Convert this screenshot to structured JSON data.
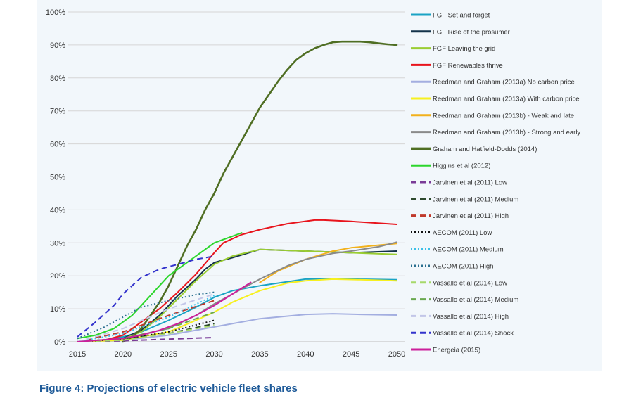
{
  "caption": "Figure 4: Projections of electric vehicle fleet shares",
  "chart_data": {
    "type": "line",
    "title": "",
    "xlabel": "",
    "ylabel": "",
    "xlim": [
      2015,
      2050
    ],
    "ylim": [
      0,
      100
    ],
    "x_ticks": [
      2015,
      2020,
      2025,
      2030,
      2035,
      2040,
      2045,
      2050
    ],
    "y_ticks": [
      0,
      10,
      20,
      30,
      40,
      50,
      60,
      70,
      80,
      90,
      100
    ],
    "y_tick_format": "percent",
    "grid": "horizontal",
    "legend_position": "right",
    "series": [
      {
        "name": "FGF Set and forget",
        "color": "#1aa3c4",
        "dash": "solid",
        "width": 2,
        "x": [
          2015,
          2018,
          2020,
          2022,
          2025,
          2028,
          2030,
          2032,
          2035,
          2040,
          2045,
          2050
        ],
        "y": [
          0,
          0.5,
          1.5,
          3,
          6.5,
          10.5,
          13.5,
          15.5,
          17,
          19,
          19,
          18.8
        ]
      },
      {
        "name": "FGF Rise of the prosumer",
        "color": "#13324a",
        "dash": "solid",
        "width": 2,
        "x": [
          2015,
          2020,
          2022,
          2024,
          2026,
          2028,
          2029,
          2030,
          2032,
          2035,
          2040,
          2045,
          2050
        ],
        "y": [
          0,
          1,
          3.5,
          8,
          14,
          19,
          22,
          24,
          25.5,
          28,
          27.5,
          27,
          27.5
        ]
      },
      {
        "name": "FGF Leaving the grid",
        "color": "#9acd32",
        "dash": "solid",
        "width": 2,
        "x": [
          2015,
          2020,
          2022,
          2024,
          2026,
          2028,
          2030,
          2032,
          2035,
          2040,
          2045,
          2050
        ],
        "y": [
          0,
          0.8,
          3,
          7.5,
          13,
          18.5,
          23.5,
          26,
          28,
          27.5,
          27,
          26.5
        ]
      },
      {
        "name": "FGF Renewables thrive",
        "color": "#e8141c",
        "dash": "solid",
        "width": 2,
        "x": [
          2015,
          2018,
          2020,
          2022,
          2024,
          2026,
          2028,
          2030,
          2031,
          2033,
          2035,
          2038,
          2041,
          2042,
          2045,
          2050
        ],
        "y": [
          0,
          0.5,
          2,
          6,
          10,
          15,
          20.5,
          27,
          30,
          32.5,
          34,
          35.8,
          36.9,
          36.9,
          36.5,
          35.6
        ]
      },
      {
        "name": "Reedman and Graham (2013a) No carbon price",
        "color": "#a3aee0",
        "dash": "solid",
        "width": 2,
        "x": [
          2015,
          2020,
          2025,
          2030,
          2035,
          2040,
          2043,
          2046,
          2050
        ],
        "y": [
          0,
          0.5,
          2,
          4.5,
          7,
          8.3,
          8.5,
          8.3,
          8.1
        ]
      },
      {
        "name": "Reedman and Graham (2013a) With carbon price",
        "color": "#f7f020",
        "dash": "solid",
        "width": 2,
        "x": [
          2015,
          2020,
          2025,
          2028,
          2030,
          2032,
          2035,
          2038,
          2040,
          2043,
          2046,
          2050
        ],
        "y": [
          0,
          0.5,
          3,
          6.5,
          9,
          12,
          15.5,
          17.8,
          18.5,
          19,
          18.8,
          18.5
        ]
      },
      {
        "name": "Reedman and Graham (2013b) - Weak and late",
        "color": "#f2b11c",
        "dash": "solid",
        "width": 2,
        "x": [
          2035,
          2037,
          2040,
          2043,
          2045,
          2048,
          2050
        ],
        "y": [
          18,
          21.5,
          25,
          27.5,
          28.5,
          29.3,
          29.8
        ]
      },
      {
        "name": "Reedman and Graham (2013b) - Strong and early",
        "color": "#8a8a8a",
        "dash": "solid",
        "width": 2,
        "x": [
          2015,
          2020,
          2025,
          2028,
          2030,
          2032,
          2035,
          2038,
          2040,
          2043,
          2045,
          2048,
          2050
        ],
        "y": [
          0,
          1,
          4,
          8,
          11.5,
          14.5,
          19,
          23,
          25,
          26.8,
          27.5,
          28.8,
          30.2
        ]
      },
      {
        "name": "Graham and Hatfield-Dodds (2014)",
        "color": "#4f6e23",
        "dash": "solid",
        "width": 2.6,
        "x": [
          2020,
          2021,
          2022,
          2023,
          2024,
          2025,
          2026,
          2027,
          2028,
          2029,
          2030,
          2031,
          2032,
          2033,
          2034,
          2035,
          2036,
          2037,
          2038,
          2039,
          2040,
          2041,
          2042,
          2043,
          2044,
          2045,
          2046,
          2047,
          2048,
          2049,
          2050
        ],
        "y": [
          0,
          1.5,
          4,
          8,
          12,
          17,
          23,
          29,
          34,
          40,
          45,
          51,
          56,
          61,
          66,
          71,
          75,
          79,
          82.5,
          85.5,
          87.5,
          89,
          90,
          90.8,
          91,
          91,
          91,
          90.8,
          90.5,
          90.2,
          90
        ]
      },
      {
        "name": "Higgins et al (2012)",
        "color": "#2cd62c",
        "dash": "solid",
        "width": 2,
        "x": [
          2015,
          2017,
          2019,
          2021,
          2023,
          2025,
          2027,
          2029,
          2030,
          2031,
          2033
        ],
        "y": [
          1,
          2,
          4,
          8,
          14,
          20,
          24,
          28,
          30,
          31,
          33
        ]
      },
      {
        "name": "Jarvinen et al (2011) Low",
        "color": "#7a3b97",
        "dash": "dashed",
        "width": 2,
        "x": [
          2015,
          2020,
          2025,
          2030
        ],
        "y": [
          0,
          0.3,
          0.8,
          1.3
        ]
      },
      {
        "name": "Jarvinen et al (2011) Medium",
        "color": "#2e4a2e",
        "dash": "dashed",
        "width": 2,
        "x": [
          2015,
          2020,
          2025,
          2030
        ],
        "y": [
          0,
          1,
          2.5,
          5.5
        ]
      },
      {
        "name": "Jarvinen et al (2011) High",
        "color": "#c0392b",
        "dash": "dashed",
        "width": 2,
        "x": [
          2015,
          2020,
          2025,
          2030
        ],
        "y": [
          0,
          3,
          8,
          12.5
        ]
      },
      {
        "name": "AECOM (2011) Low",
        "color": "#111111",
        "dash": "dotted",
        "width": 2,
        "x": [
          2015,
          2020,
          2025,
          2030
        ],
        "y": [
          0,
          0.8,
          3,
          6.5
        ]
      },
      {
        "name": "AECOM (2011) Medium",
        "color": "#3cc0e8",
        "dash": "dotted",
        "width": 2,
        "x": [
          2015,
          2020,
          2025,
          2030
        ],
        "y": [
          0,
          2.5,
          7.5,
          14
        ]
      },
      {
        "name": "AECOM (2011) High",
        "color": "#2a6f8f",
        "dash": "dotted",
        "width": 2,
        "x": [
          2015,
          2018,
          2020,
          2022,
          2025,
          2028,
          2030
        ],
        "y": [
          1,
          4.5,
          7.5,
          10.5,
          12.5,
          14.3,
          15
        ]
      },
      {
        "name": "Vassallo et al (2014) Low",
        "color": "#a6d96a",
        "dash": "dashed",
        "width": 2,
        "x": [
          2015,
          2020,
          2025,
          2030
        ],
        "y": [
          0,
          0.5,
          2.5,
          5
        ]
      },
      {
        "name": "Vassallo et al (2014) Medium",
        "color": "#6aa84f",
        "dash": "dashed",
        "width": 2,
        "x": [
          2015,
          2020,
          2025,
          2030
        ],
        "y": [
          0,
          1,
          4,
          9
        ]
      },
      {
        "name": "Vassallo et al (2014) High",
        "color": "#c2c6e8",
        "dash": "dashed",
        "width": 2,
        "x": [
          2015,
          2020,
          2025,
          2030
        ],
        "y": [
          0,
          4,
          10,
          14.5
        ]
      },
      {
        "name": "Vassallo et al (2014) Shock",
        "color": "#3333cc",
        "dash": "dashed",
        "width": 2,
        "x": [
          2015,
          2017,
          2019,
          2020,
          2022,
          2024,
          2026,
          2028,
          2030
        ],
        "y": [
          1.5,
          6,
          11,
          14.5,
          19.5,
          22,
          23.5,
          25,
          26
        ]
      },
      {
        "name": "Energeia (2015)",
        "color": "#cc1f9b",
        "dash": "solid",
        "width": 2,
        "x": [
          2015,
          2020,
          2022,
          2024,
          2026,
          2028,
          2030,
          2032,
          2034
        ],
        "y": [
          0,
          1,
          2,
          3.5,
          5.5,
          8,
          11,
          14.5,
          18
        ]
      }
    ]
  }
}
